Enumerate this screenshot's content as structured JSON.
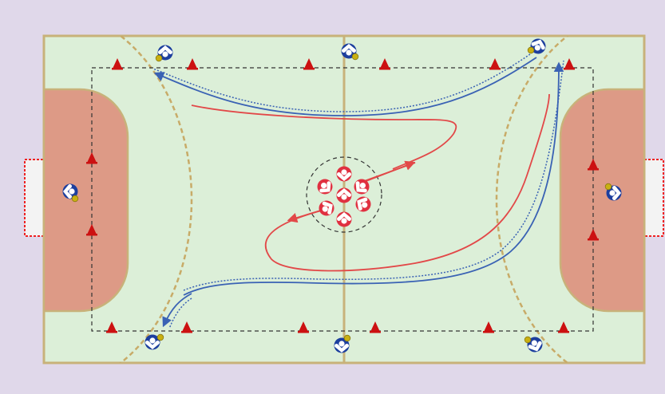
{
  "colors": {
    "background": "#e0d8ea",
    "court": "#dcefd8",
    "court_line": "#c8b27a",
    "goal_area": "#dd9a86",
    "nine_meter_line": "#c8ab68",
    "goal_net": "#f3f3f3",
    "goal_post": "#ee2222",
    "cone": "#cc1111",
    "player_blue": "#1d3f9e",
    "player_red": "#e03040",
    "ball": "#c9b012",
    "path_blue": "#3a62b4",
    "path_red": "#e24848",
    "drill_boundary": "#333333"
  },
  "drill": {
    "cones": [
      {
        "name": "cone-top-1"
      },
      {
        "name": "cone-top-2"
      },
      {
        "name": "cone-top-3"
      },
      {
        "name": "cone-top-4"
      },
      {
        "name": "cone-top-5"
      },
      {
        "name": "cone-top-6"
      },
      {
        "name": "cone-bottom-1"
      },
      {
        "name": "cone-bottom-2"
      },
      {
        "name": "cone-bottom-3"
      },
      {
        "name": "cone-bottom-4"
      },
      {
        "name": "cone-bottom-5"
      },
      {
        "name": "cone-bottom-6"
      },
      {
        "name": "cone-left-1"
      },
      {
        "name": "cone-left-2"
      },
      {
        "name": "cone-right-1"
      },
      {
        "name": "cone-right-2"
      }
    ],
    "players_blue": [
      {
        "name": "player-blue-top-left",
        "icon": "handball-player-with-ball-icon"
      },
      {
        "name": "player-blue-top-center",
        "icon": "handball-player-with-ball-icon"
      },
      {
        "name": "player-blue-top-right",
        "icon": "handball-player-with-ball-icon"
      },
      {
        "name": "player-blue-goal-left",
        "icon": "handball-player-with-ball-icon"
      },
      {
        "name": "player-blue-goal-right",
        "icon": "handball-player-with-ball-icon"
      },
      {
        "name": "player-blue-bottom-left",
        "icon": "handball-player-with-ball-icon"
      },
      {
        "name": "player-blue-bottom-center",
        "icon": "handball-player-with-ball-icon"
      },
      {
        "name": "player-blue-bottom-right",
        "icon": "handball-player-with-ball-icon"
      }
    ],
    "players_red_count": 7
  }
}
